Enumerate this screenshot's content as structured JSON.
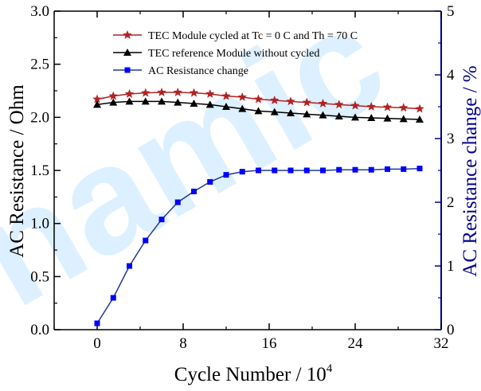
{
  "watermark": "namic",
  "chart_data": {
    "type": "line",
    "xlabel": "Cycle Number / 10",
    "xlabel_sup": "4",
    "ylabel": "AC Resistance / Ohm",
    "y2label": "AC Resistance change / %",
    "xlim": [
      -4,
      32
    ],
    "ylim": [
      0,
      3.0
    ],
    "y2lim": [
      0,
      5
    ],
    "xticks": [
      0,
      8,
      16,
      24,
      32
    ],
    "yticks": [
      "0.0",
      "0.5",
      "1.0",
      "1.5",
      "2.0",
      "2.5",
      "3.0"
    ],
    "y2ticks": [
      "0",
      "1",
      "2",
      "3",
      "4",
      "5"
    ],
    "legend_position": "top-center",
    "series": [
      {
        "name": "TEC Module cycled at Tc = 0 C and Th = 70 C",
        "axis": "left",
        "marker": "star",
        "color": "#b22222",
        "x": [
          0,
          1.5,
          3,
          4.5,
          6,
          7.5,
          9,
          10.5,
          12,
          13.5,
          15,
          16.5,
          18,
          19.5,
          21,
          22.5,
          24,
          25.5,
          27,
          28.5,
          30
        ],
        "y": [
          2.17,
          2.2,
          2.22,
          2.23,
          2.235,
          2.235,
          2.23,
          2.22,
          2.2,
          2.19,
          2.17,
          2.16,
          2.15,
          2.14,
          2.13,
          2.12,
          2.11,
          2.1,
          2.095,
          2.09,
          2.08
        ]
      },
      {
        "name": "TEC reference Module without cycled",
        "axis": "left",
        "marker": "triangle",
        "color": "#000000",
        "x": [
          0,
          1.5,
          3,
          4.5,
          6,
          7.5,
          9,
          10.5,
          12,
          13.5,
          15,
          16.5,
          18,
          19.5,
          21,
          22.5,
          24,
          25.5,
          27,
          28.5,
          30
        ],
        "y": [
          2.12,
          2.14,
          2.15,
          2.15,
          2.15,
          2.14,
          2.13,
          2.12,
          2.1,
          2.08,
          2.06,
          2.05,
          2.04,
          2.03,
          2.02,
          2.01,
          2.0,
          1.995,
          1.99,
          1.985,
          1.98
        ]
      },
      {
        "name": "AC Resistance change",
        "axis": "right",
        "marker": "square",
        "color": "#0000ff",
        "line_color": "#1f3a93",
        "x": [
          0,
          1.5,
          3,
          4.5,
          6,
          7.5,
          9,
          10.5,
          12,
          13.5,
          15,
          16.5,
          18,
          19.5,
          21,
          22.5,
          24,
          25.5,
          27,
          28.5,
          30
        ],
        "y": [
          0.1,
          0.5,
          1.0,
          1.4,
          1.73,
          2.0,
          2.17,
          2.32,
          2.43,
          2.48,
          2.5,
          2.5,
          2.5,
          2.5,
          2.5,
          2.51,
          2.51,
          2.51,
          2.52,
          2.52,
          2.53
        ]
      }
    ]
  }
}
